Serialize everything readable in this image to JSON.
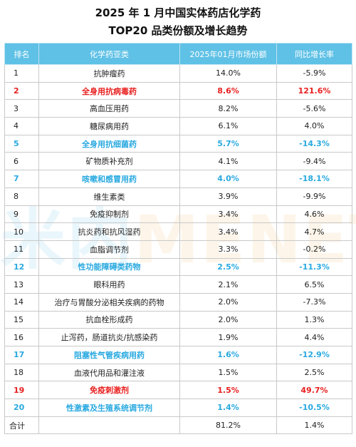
{
  "title": {
    "line1": "2025 年 1 月中国实体药店化学药",
    "line2": "TOP20 品类份额及增长趋势"
  },
  "watermark": {
    "left": "米内",
    "right": "MENET"
  },
  "colors": {
    "header_bg": "#5fc1e6",
    "highlight_red": "#e8201f",
    "highlight_blue": "#28a9e0"
  },
  "table": {
    "headers": [
      "排名",
      "化学药亚类",
      "2025年01月市场份额",
      "同比增长率"
    ],
    "rows": [
      {
        "rank": "1",
        "category": "抗肿瘤药",
        "share": "14.0%",
        "growth": "-5.9%",
        "highlight": ""
      },
      {
        "rank": "2",
        "category": "全身用抗病毒药",
        "share": "8.6%",
        "growth": "121.6%",
        "highlight": "red"
      },
      {
        "rank": "3",
        "category": "高血压用药",
        "share": "8.2%",
        "growth": "-5.6%",
        "highlight": ""
      },
      {
        "rank": "4",
        "category": "糖尿病用药",
        "share": "6.1%",
        "growth": "4.0%",
        "highlight": ""
      },
      {
        "rank": "5",
        "category": "全身用抗细菌药",
        "share": "5.7%",
        "growth": "-14.3%",
        "highlight": "blue"
      },
      {
        "rank": "6",
        "category": "矿物质补充剂",
        "share": "4.1%",
        "growth": "-9.4%",
        "highlight": ""
      },
      {
        "rank": "7",
        "category": "咳嗽和感冒用药",
        "share": "4.0%",
        "growth": "-18.1%",
        "highlight": "blue"
      },
      {
        "rank": "8",
        "category": "维生素类",
        "share": "3.9%",
        "growth": "-9.9%",
        "highlight": ""
      },
      {
        "rank": "9",
        "category": "免疫抑制剂",
        "share": "3.4%",
        "growth": "4.6%",
        "highlight": ""
      },
      {
        "rank": "10",
        "category": "抗炎药和抗风湿药",
        "share": "3.4%",
        "growth": "4.7%",
        "highlight": ""
      },
      {
        "rank": "11",
        "category": "血脂调节剂",
        "share": "3.3%",
        "growth": "-0.2%",
        "highlight": ""
      },
      {
        "rank": "12",
        "category": "性功能障碍类药物",
        "share": "2.5%",
        "growth": "-11.3%",
        "highlight": "blue"
      },
      {
        "rank": "13",
        "category": "眼科用药",
        "share": "2.1%",
        "growth": "6.5%",
        "highlight": ""
      },
      {
        "rank": "14",
        "category": "治疗与胃酸分泌相关疾病的药物",
        "share": "2.0%",
        "growth": "-7.3%",
        "highlight": ""
      },
      {
        "rank": "15",
        "category": "抗血栓形成药",
        "share": "2.0%",
        "growth": "1.3%",
        "highlight": ""
      },
      {
        "rank": "16",
        "category": "止泻药，肠道抗炎/抗感染药",
        "share": "1.9%",
        "growth": "4.4%",
        "highlight": ""
      },
      {
        "rank": "17",
        "category": "阻塞性气管疾病用药",
        "share": "1.6%",
        "growth": "-12.9%",
        "highlight": "blue"
      },
      {
        "rank": "18",
        "category": "血液代用品和灌注液",
        "share": "1.5%",
        "growth": "2.5%",
        "highlight": ""
      },
      {
        "rank": "19",
        "category": "免疫刺激剂",
        "share": "1.5%",
        "growth": "49.7%",
        "highlight": "red"
      },
      {
        "rank": "20",
        "category": "性激素及生殖系统调节剂",
        "share": "1.4%",
        "growth": "-10.5%",
        "highlight": "blue"
      }
    ],
    "total": {
      "label": "合计",
      "share": "81.2%",
      "growth": "1.4%"
    }
  }
}
